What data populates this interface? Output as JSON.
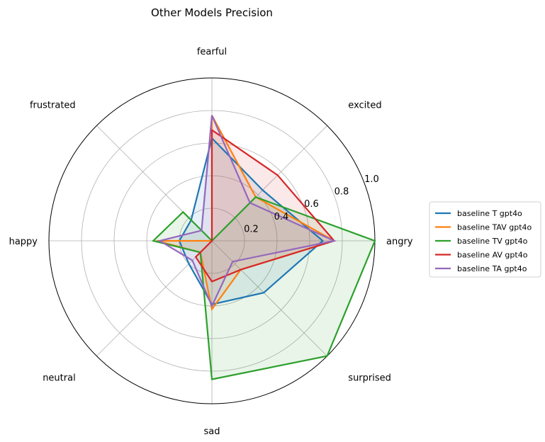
{
  "chart_data": {
    "type": "radar",
    "title": "Other Models Precision",
    "categories": [
      "angry",
      "excited",
      "fearful",
      "frustrated",
      "happy",
      "neutral",
      "sad",
      "surprised"
    ],
    "rlim": [
      0,
      1.0
    ],
    "radial_ticks": [
      {
        "value": 0.2,
        "label": "0.2"
      },
      {
        "value": 0.4,
        "label": "0.4"
      },
      {
        "value": 0.6,
        "label": "0.6"
      },
      {
        "value": 0.8,
        "label": "0.8"
      },
      {
        "value": 1.0,
        "label": "1.0"
      }
    ],
    "grid": true,
    "legend_position": "right",
    "series": [
      {
        "name": "baseline T gpt4o",
        "color": "#1f77b4",
        "values": [
          0.68,
          0.44,
          0.63,
          0.18,
          0.2,
          0.2,
          0.39,
          0.45
        ]
      },
      {
        "name": "baseline TAV gpt4o",
        "color": "#ff7f0e",
        "values": [
          0.75,
          0.38,
          0.77,
          0.0,
          0.34,
          0.1,
          0.42,
          0.25
        ]
      },
      {
        "name": "baseline TV gpt4o",
        "color": "#2ca02c",
        "values": [
          1.0,
          0.38,
          0.0,
          0.25,
          0.36,
          0.1,
          0.85,
          1.0
        ]
      },
      {
        "name": "baseline AV gpt4o",
        "color": "#d62728",
        "values": [
          0.75,
          0.57,
          0.68,
          0.0,
          0.0,
          0.14,
          0.25,
          0.25
        ]
      },
      {
        "name": "baseline TA gpt4o",
        "color": "#9467bd",
        "values": [
          0.75,
          0.33,
          0.77,
          0.09,
          0.32,
          0.17,
          0.4,
          0.18
        ]
      }
    ]
  }
}
